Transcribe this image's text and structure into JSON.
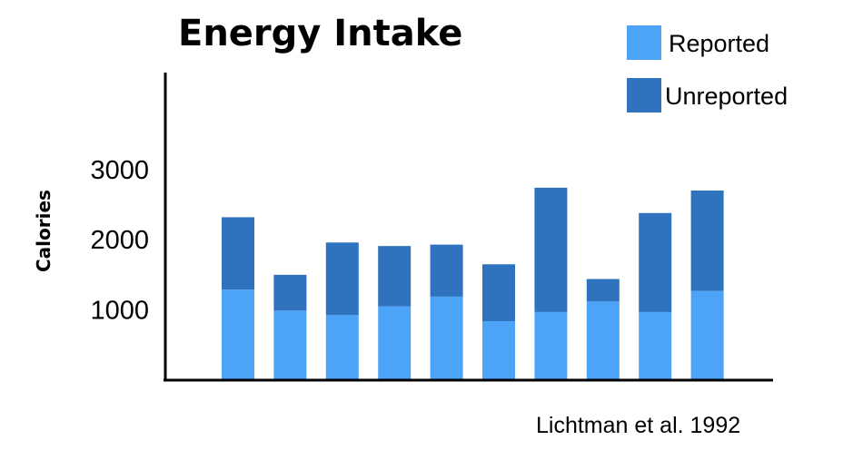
{
  "chart_data": {
    "type": "bar",
    "stacked": true,
    "title": "Energy Intake",
    "xlabel": "",
    "ylabel": "Calories",
    "ylim": [
      0,
      4000
    ],
    "yticks": [
      {
        "value": 1000,
        "label": "1000"
      },
      {
        "value": 2000,
        "label": "2000"
      },
      {
        "value": 3000,
        "label": "3000"
      }
    ],
    "categories": [
      "",
      "",
      "",
      "",
      "",
      "",
      "",
      "",
      "",
      ""
    ],
    "series": [
      {
        "name": "Reported",
        "color": "#4da3f7",
        "values": [
          1290,
          990,
          930,
          1050,
          1190,
          840,
          970,
          1120,
          970,
          1270
        ]
      },
      {
        "name": "Unreported",
        "color": "#2f72bd",
        "values": [
          1030,
          510,
          1030,
          860,
          740,
          810,
          1770,
          320,
          1410,
          1430
        ]
      }
    ],
    "legend_position": "top-right",
    "grid": false,
    "source_note": "Lichtman et al. 1992"
  }
}
